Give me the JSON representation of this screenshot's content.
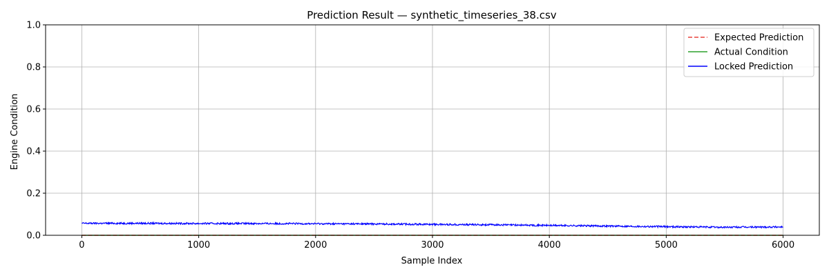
{
  "chart_data": {
    "type": "line",
    "title": "Prediction Result — synthetic_timeseries_38.csv",
    "xlabel": "Sample Index",
    "ylabel": "Engine Condition",
    "xlim": [
      -310,
      6310
    ],
    "ylim": [
      0.0,
      1.0
    ],
    "xticks": [
      0,
      1000,
      2000,
      3000,
      4000,
      5000,
      6000
    ],
    "xtick_labels": [
      "0",
      "1000",
      "2000",
      "3000",
      "4000",
      "5000",
      "6000"
    ],
    "yticks": [
      0.0,
      0.2,
      0.4,
      0.6,
      0.8,
      1.0
    ],
    "ytick_labels": [
      "0.0",
      "0.2",
      "0.4",
      "0.6",
      "0.8",
      "1.0"
    ],
    "grid": true,
    "legend_position": "top-right",
    "series": [
      {
        "name": "Expected Prediction",
        "style": "dashed",
        "color": "#e8423c",
        "x": [
          0,
          6000
        ],
        "y": [
          0.0,
          0.0
        ]
      },
      {
        "name": "Actual Condition",
        "style": "solid",
        "color": "#2ca02c",
        "x": [
          0,
          6000
        ],
        "y": [
          0.0,
          0.0
        ]
      },
      {
        "name": "Locked Prediction",
        "style": "solid",
        "color": "#0000ff",
        "x": [
          0,
          500,
          1000,
          1500,
          2000,
          2500,
          3000,
          3500,
          4000,
          4500,
          5000,
          5500,
          6000
        ],
        "y": [
          0.057,
          0.057,
          0.056,
          0.056,
          0.055,
          0.054,
          0.052,
          0.05,
          0.047,
          0.044,
          0.041,
          0.038,
          0.04
        ],
        "noise_amplitude": 0.004
      }
    ]
  }
}
